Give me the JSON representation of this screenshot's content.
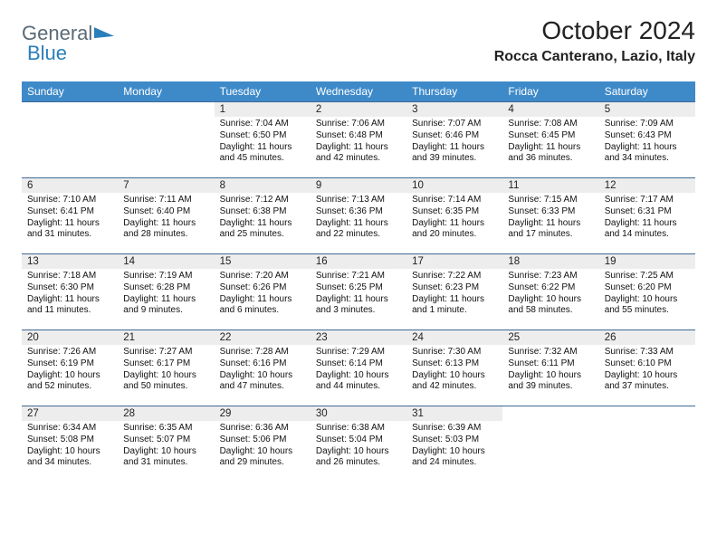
{
  "brand": {
    "word1": "General",
    "word2": "Blue"
  },
  "title": "October 2024",
  "location": "Rocca Canterano, Lazio, Italy",
  "colors": {
    "header_bg": "#3e8ac9",
    "header_text": "#ffffff",
    "daynum_bg": "#ededed",
    "cell_border": "#3e6a94",
    "logo_gray": "#5a6a76",
    "logo_blue": "#2a7fba"
  },
  "typography": {
    "title_fontsize": 28,
    "location_fontsize": 16,
    "dayheader_fontsize": 12,
    "daynum_fontsize": 11.5,
    "body_fontsize": 10
  },
  "day_headers": [
    "Sunday",
    "Monday",
    "Tuesday",
    "Wednesday",
    "Thursday",
    "Friday",
    "Saturday"
  ],
  "layout": {
    "columns": 7,
    "rows": 5
  },
  "weeks": [
    [
      null,
      null,
      {
        "n": "1",
        "sr": "Sunrise: 7:04 AM",
        "ss": "Sunset: 6:50 PM",
        "dl": "Daylight: 11 hours and 45 minutes."
      },
      {
        "n": "2",
        "sr": "Sunrise: 7:06 AM",
        "ss": "Sunset: 6:48 PM",
        "dl": "Daylight: 11 hours and 42 minutes."
      },
      {
        "n": "3",
        "sr": "Sunrise: 7:07 AM",
        "ss": "Sunset: 6:46 PM",
        "dl": "Daylight: 11 hours and 39 minutes."
      },
      {
        "n": "4",
        "sr": "Sunrise: 7:08 AM",
        "ss": "Sunset: 6:45 PM",
        "dl": "Daylight: 11 hours and 36 minutes."
      },
      {
        "n": "5",
        "sr": "Sunrise: 7:09 AM",
        "ss": "Sunset: 6:43 PM",
        "dl": "Daylight: 11 hours and 34 minutes."
      }
    ],
    [
      {
        "n": "6",
        "sr": "Sunrise: 7:10 AM",
        "ss": "Sunset: 6:41 PM",
        "dl": "Daylight: 11 hours and 31 minutes."
      },
      {
        "n": "7",
        "sr": "Sunrise: 7:11 AM",
        "ss": "Sunset: 6:40 PM",
        "dl": "Daylight: 11 hours and 28 minutes."
      },
      {
        "n": "8",
        "sr": "Sunrise: 7:12 AM",
        "ss": "Sunset: 6:38 PM",
        "dl": "Daylight: 11 hours and 25 minutes."
      },
      {
        "n": "9",
        "sr": "Sunrise: 7:13 AM",
        "ss": "Sunset: 6:36 PM",
        "dl": "Daylight: 11 hours and 22 minutes."
      },
      {
        "n": "10",
        "sr": "Sunrise: 7:14 AM",
        "ss": "Sunset: 6:35 PM",
        "dl": "Daylight: 11 hours and 20 minutes."
      },
      {
        "n": "11",
        "sr": "Sunrise: 7:15 AM",
        "ss": "Sunset: 6:33 PM",
        "dl": "Daylight: 11 hours and 17 minutes."
      },
      {
        "n": "12",
        "sr": "Sunrise: 7:17 AM",
        "ss": "Sunset: 6:31 PM",
        "dl": "Daylight: 11 hours and 14 minutes."
      }
    ],
    [
      {
        "n": "13",
        "sr": "Sunrise: 7:18 AM",
        "ss": "Sunset: 6:30 PM",
        "dl": "Daylight: 11 hours and 11 minutes."
      },
      {
        "n": "14",
        "sr": "Sunrise: 7:19 AM",
        "ss": "Sunset: 6:28 PM",
        "dl": "Daylight: 11 hours and 9 minutes."
      },
      {
        "n": "15",
        "sr": "Sunrise: 7:20 AM",
        "ss": "Sunset: 6:26 PM",
        "dl": "Daylight: 11 hours and 6 minutes."
      },
      {
        "n": "16",
        "sr": "Sunrise: 7:21 AM",
        "ss": "Sunset: 6:25 PM",
        "dl": "Daylight: 11 hours and 3 minutes."
      },
      {
        "n": "17",
        "sr": "Sunrise: 7:22 AM",
        "ss": "Sunset: 6:23 PM",
        "dl": "Daylight: 11 hours and 1 minute."
      },
      {
        "n": "18",
        "sr": "Sunrise: 7:23 AM",
        "ss": "Sunset: 6:22 PM",
        "dl": "Daylight: 10 hours and 58 minutes."
      },
      {
        "n": "19",
        "sr": "Sunrise: 7:25 AM",
        "ss": "Sunset: 6:20 PM",
        "dl": "Daylight: 10 hours and 55 minutes."
      }
    ],
    [
      {
        "n": "20",
        "sr": "Sunrise: 7:26 AM",
        "ss": "Sunset: 6:19 PM",
        "dl": "Daylight: 10 hours and 52 minutes."
      },
      {
        "n": "21",
        "sr": "Sunrise: 7:27 AM",
        "ss": "Sunset: 6:17 PM",
        "dl": "Daylight: 10 hours and 50 minutes."
      },
      {
        "n": "22",
        "sr": "Sunrise: 7:28 AM",
        "ss": "Sunset: 6:16 PM",
        "dl": "Daylight: 10 hours and 47 minutes."
      },
      {
        "n": "23",
        "sr": "Sunrise: 7:29 AM",
        "ss": "Sunset: 6:14 PM",
        "dl": "Daylight: 10 hours and 44 minutes."
      },
      {
        "n": "24",
        "sr": "Sunrise: 7:30 AM",
        "ss": "Sunset: 6:13 PM",
        "dl": "Daylight: 10 hours and 42 minutes."
      },
      {
        "n": "25",
        "sr": "Sunrise: 7:32 AM",
        "ss": "Sunset: 6:11 PM",
        "dl": "Daylight: 10 hours and 39 minutes."
      },
      {
        "n": "26",
        "sr": "Sunrise: 7:33 AM",
        "ss": "Sunset: 6:10 PM",
        "dl": "Daylight: 10 hours and 37 minutes."
      }
    ],
    [
      {
        "n": "27",
        "sr": "Sunrise: 6:34 AM",
        "ss": "Sunset: 5:08 PM",
        "dl": "Daylight: 10 hours and 34 minutes."
      },
      {
        "n": "28",
        "sr": "Sunrise: 6:35 AM",
        "ss": "Sunset: 5:07 PM",
        "dl": "Daylight: 10 hours and 31 minutes."
      },
      {
        "n": "29",
        "sr": "Sunrise: 6:36 AM",
        "ss": "Sunset: 5:06 PM",
        "dl": "Daylight: 10 hours and 29 minutes."
      },
      {
        "n": "30",
        "sr": "Sunrise: 6:38 AM",
        "ss": "Sunset: 5:04 PM",
        "dl": "Daylight: 10 hours and 26 minutes."
      },
      {
        "n": "31",
        "sr": "Sunrise: 6:39 AM",
        "ss": "Sunset: 5:03 PM",
        "dl": "Daylight: 10 hours and 24 minutes."
      },
      null,
      null
    ]
  ]
}
